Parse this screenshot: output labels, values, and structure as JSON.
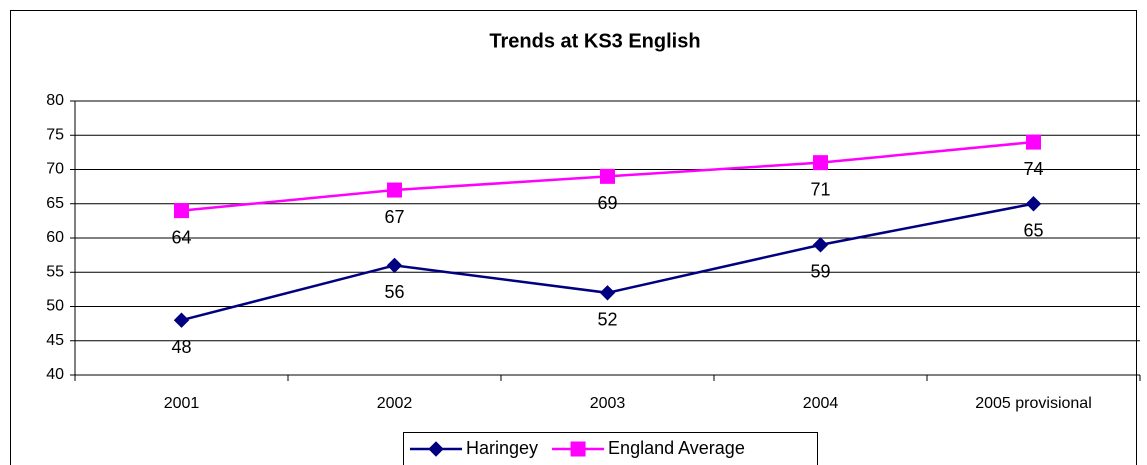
{
  "chart_data": {
    "type": "line",
    "title": "Trends at KS3 English",
    "categories": [
      "2001",
      "2002",
      "2003",
      "2004",
      "2005 provisional"
    ],
    "series": [
      {
        "name": "Haringey",
        "color": "#000080",
        "marker": "diamond",
        "values": [
          48,
          56,
          52,
          59,
          65
        ]
      },
      {
        "name": "England Average",
        "color": "#ff00ff",
        "marker": "square",
        "values": [
          64,
          67,
          69,
          71,
          74
        ]
      }
    ],
    "ylim": [
      40,
      80
    ],
    "yticks": [
      40,
      45,
      50,
      55,
      60,
      65,
      70,
      75,
      80
    ],
    "grid": true,
    "legend": "bottom"
  }
}
